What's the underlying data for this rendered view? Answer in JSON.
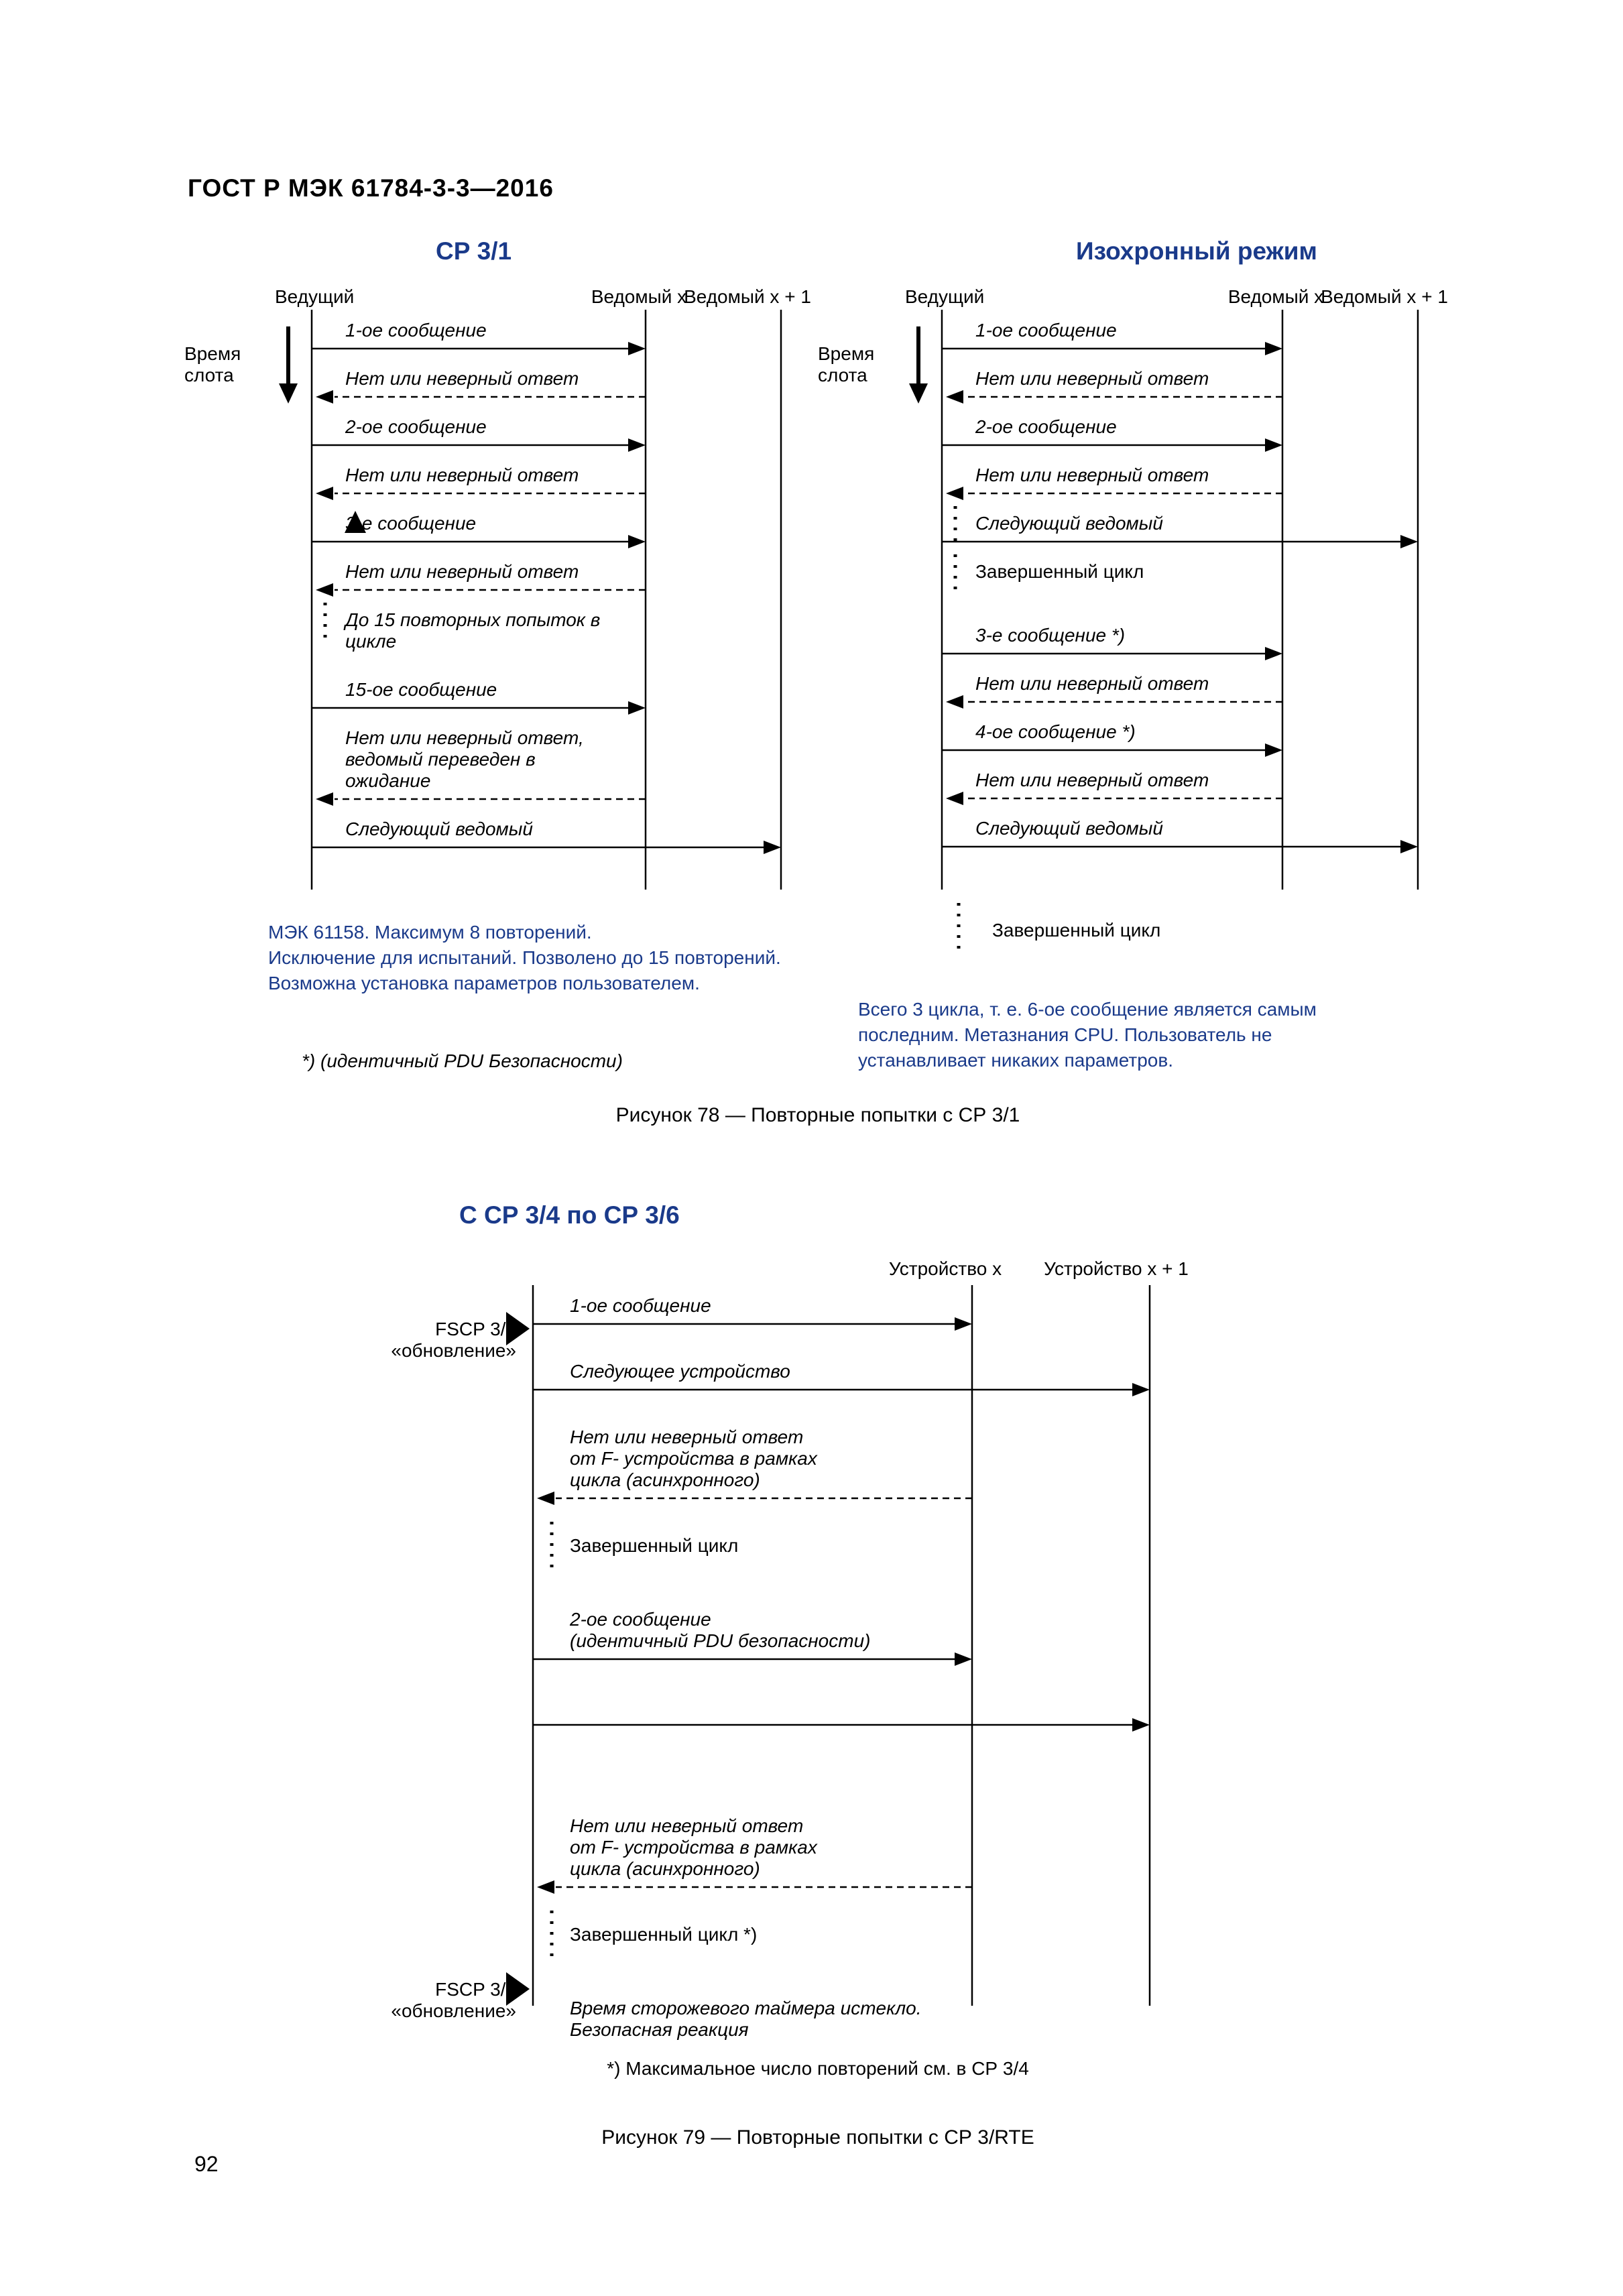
{
  "doc": {
    "header": "ГОСТ Р МЭК 61784-3-3—2016",
    "pageNumber": "92"
  },
  "fig78": {
    "caption": "Рисунок 78 — Повторные попытки с СР 3/1",
    "footnote": "*) (идентичный PDU Безопасности)",
    "left": {
      "title": "СР 3/1",
      "roles": {
        "master": "Ведущий",
        "sx": "Ведомый x",
        "sx1": "Ведомый x + 1"
      },
      "slot": "Время\nслота",
      "rows": [
        {
          "t": "1-ое сообщение",
          "dir": "fwd"
        },
        {
          "t": "Нет или неверный ответ",
          "dir": "back"
        },
        {
          "t": "2-ое сообщение",
          "dir": "fwd"
        },
        {
          "t": "Нет или неверный ответ",
          "dir": "back"
        },
        {
          "t": "3-е сообщение",
          "dir": "fwd"
        },
        {
          "t": "Нет или неверный ответ",
          "dir": "back"
        },
        {
          "t": "До 15 повторных попыток в\nцикле",
          "dir": "none",
          "dot": true
        },
        {
          "t": "15-ое сообщение",
          "dir": "fwd"
        },
        {
          "t": "Нет или неверный ответ,\nведомый переведен в\nожидание",
          "dir": "back"
        },
        {
          "t": "Следующий ведомый",
          "dir": "fwd2"
        }
      ],
      "note": "МЭК 61158. Максимум 8 повторений.\nИсключение для испытаний. Позволено до 15 повторений.\nВозможна установка параметров пользователем."
    },
    "right": {
      "title": "Изохронный режим",
      "roles": {
        "master": "Ведущий",
        "sx": "Ведомый x",
        "sx1": "Ведомый x + 1"
      },
      "slot": "Время\nслота",
      "rows": [
        {
          "t": "1-ое сообщение",
          "dir": "fwd"
        },
        {
          "t": "Нет или неверный ответ",
          "dir": "back"
        },
        {
          "t": "2-ое сообщение",
          "dir": "fwd"
        },
        {
          "t": "Нет или неверный ответ",
          "dir": "back"
        },
        {
          "t": "Следующий ведомый",
          "dir": "fwd2",
          "dot": true
        },
        {
          "t": "Завершенный цикл",
          "dir": "none",
          "dot": true,
          "gap": true,
          "black": true
        },
        {
          "t": "3-е сообщение *)",
          "dir": "fwd"
        },
        {
          "t": "Нет или неверный ответ",
          "dir": "back"
        },
        {
          "t": "4-ое сообщение *)",
          "dir": "fwd"
        },
        {
          "t": "Нет или неверный ответ",
          "dir": "back"
        },
        {
          "t": "Следующий ведомый",
          "dir": "fwd2"
        }
      ],
      "tail": "Завершенный цикл",
      "note": "Всего 3 цикла, т. е. 6-ое сообщение является самым\nпоследним. Метазнания CPU. Пользователь не\nустанавливает никаких параметров."
    }
  },
  "fig79": {
    "title": "С СР 3/4 по СР 3/6",
    "roles": {
      "dx": "Устройство x",
      "dx1": "Устройство x + 1"
    },
    "leftLabels": {
      "top": "FSCP 3/1\n«обновление»",
      "bot": "FSCP 3/1\n«обновление»"
    },
    "rows": [
      {
        "t": "1-ое сообщение",
        "dir": "fwd"
      },
      {
        "t": "Следующее устройство",
        "dir": "fwd2"
      },
      {
        "t": "Нет или неверный ответ\nот F- устройства в рамках\nцикла (асинхронного)",
        "dir": "back"
      },
      {
        "t": "Завершенный цикл",
        "dir": "none",
        "dot": true,
        "black": true
      },
      {
        "t": "2-ое сообщение\n(идентичный PDU безопасности)",
        "dir": "fwd"
      },
      {
        "t": "",
        "dir": "fwd2",
        "nolabel": true
      },
      {
        "t": "Нет или неверный ответ\nот F- устройства в рамках\nцикла (асинхронного)",
        "dir": "back",
        "gapBefore": true
      },
      {
        "t": "Завершенный цикл *)",
        "dir": "none",
        "dot": true,
        "black": true
      },
      {
        "t": "Время сторожевого таймера истекло.\nБезопасная реакция",
        "dir": "none",
        "final": true
      }
    ],
    "foot": "*) Максимальное число повторений см. в СР 3/4",
    "caption": "Рисунок 79 — Повторные попытки с СР 3/RTE"
  },
  "style": {
    "blue": "#1a3a8a",
    "black": "#000000",
    "font": "Arial",
    "msgSize": 28,
    "lblSize": 28,
    "titleSize": 37,
    "lifelineW": 2.5,
    "timebarW": 6
  }
}
